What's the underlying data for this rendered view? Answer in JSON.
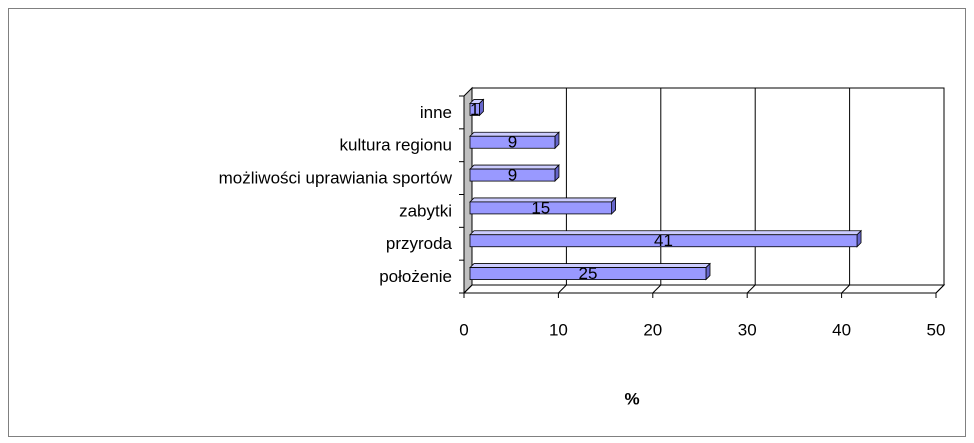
{
  "chart_data": {
    "type": "bar",
    "orientation": "horizontal",
    "categories": [
      "położenie",
      "przyroda",
      "zabytki",
      "możliwości uprawiania sportów",
      "kultura regionu",
      "inne"
    ],
    "values": [
      25,
      41,
      15,
      9,
      9,
      1
    ],
    "color": "#9999ff",
    "xlabel": "%",
    "xlim": [
      0,
      50
    ],
    "xticks": [
      0,
      10,
      20,
      30,
      40,
      50
    ],
    "grid": true,
    "data_labels": true
  }
}
